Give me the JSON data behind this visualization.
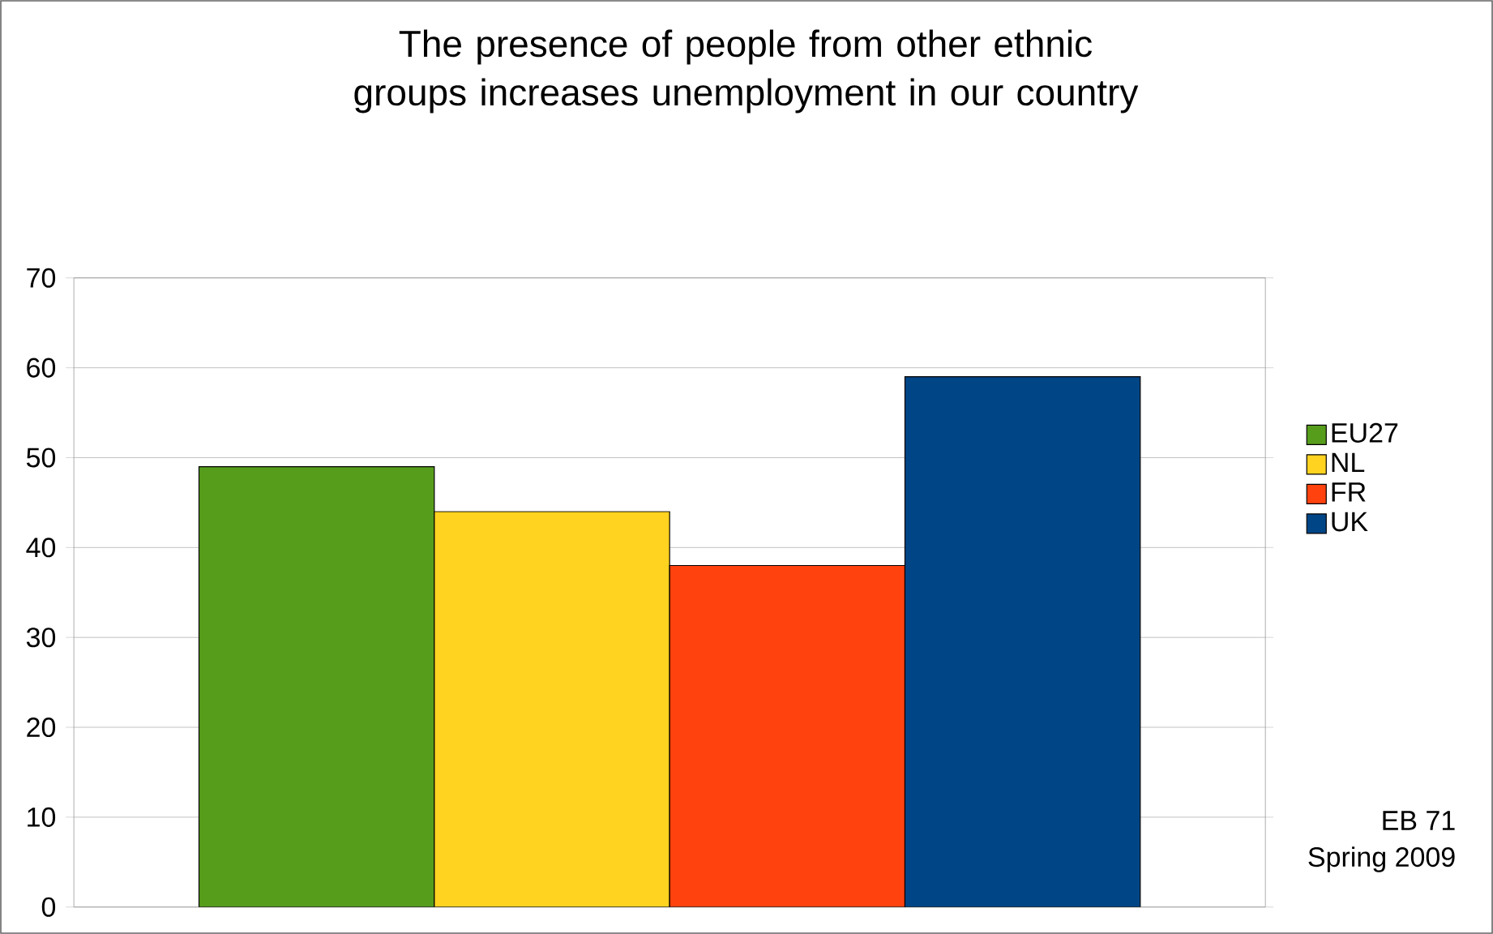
{
  "chart_data": {
    "type": "bar",
    "title": "The presence of people from other ethnic groups increases unemployment in our country",
    "categories": [
      null
    ],
    "series": [
      {
        "name": "EU27",
        "color": "#579d1c",
        "values": [
          49
        ]
      },
      {
        "name": "NL",
        "color": "#ffd320",
        "values": [
          44
        ]
      },
      {
        "name": "FR",
        "color": "#ff420e",
        "values": [
          38
        ]
      },
      {
        "name": "UK",
        "color": "#004586",
        "values": [
          59
        ]
      }
    ],
    "ylim": [
      0,
      70
    ],
    "yticks": [
      0,
      10,
      20,
      30,
      40,
      50,
      60,
      70
    ],
    "grid": "y",
    "legend": "right",
    "annotations": [
      "EB 71",
      "Spring 2009"
    ]
  }
}
